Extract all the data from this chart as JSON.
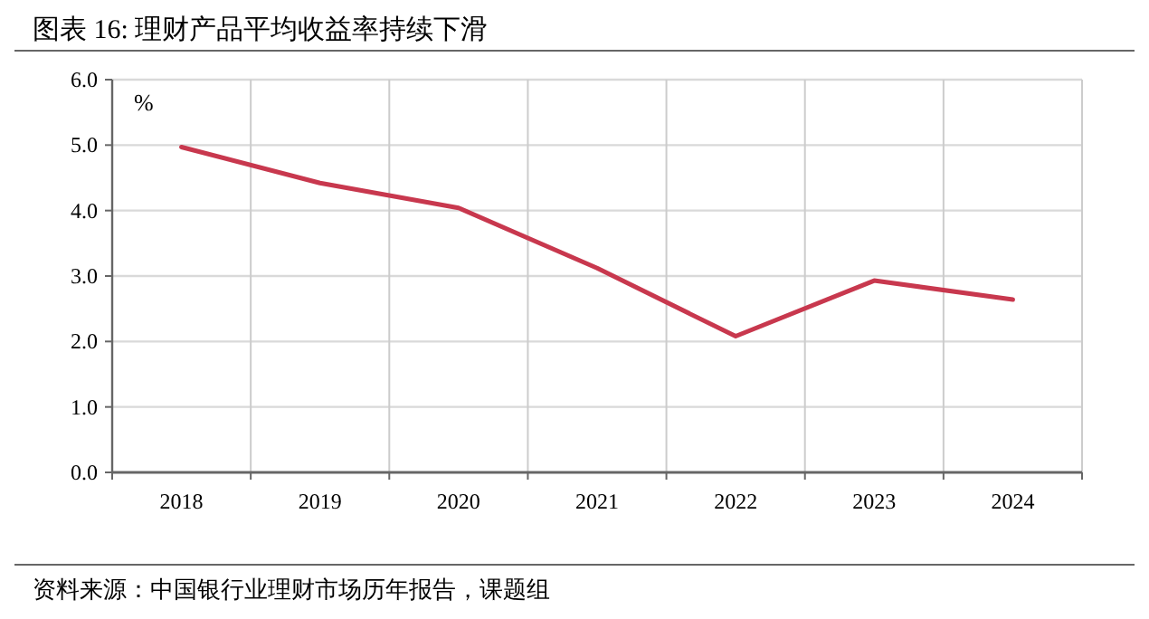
{
  "chart_data": {
    "type": "line",
    "title": "图表 16: 理财产品平均收益率持续下滑",
    "ylabel": "%",
    "annotations": [
      "资料来源：中国银行业理财市场历年报告，课题组"
    ],
    "categories": [
      "2018",
      "2019",
      "2020",
      "2021",
      "2022",
      "2023",
      "2024"
    ],
    "series": [
      {
        "color": "#c8384e",
        "values": [
          4.97,
          4.42,
          4.04,
          3.12,
          2.08,
          2.93,
          2.64
        ]
      }
    ],
    "ylim": [
      0,
      6
    ],
    "yticks": [
      {
        "value": 0,
        "label": "0.0"
      },
      {
        "value": 1,
        "label": "1.0"
      },
      {
        "value": 2,
        "label": "2.0"
      },
      {
        "value": 3,
        "label": "3.0"
      },
      {
        "value": 4,
        "label": "4.0"
      },
      {
        "value": 5,
        "label": "5.0"
      },
      {
        "value": 6,
        "label": "6.0"
      }
    ],
    "grid": true,
    "marker": "none",
    "line_style": "solid"
  }
}
